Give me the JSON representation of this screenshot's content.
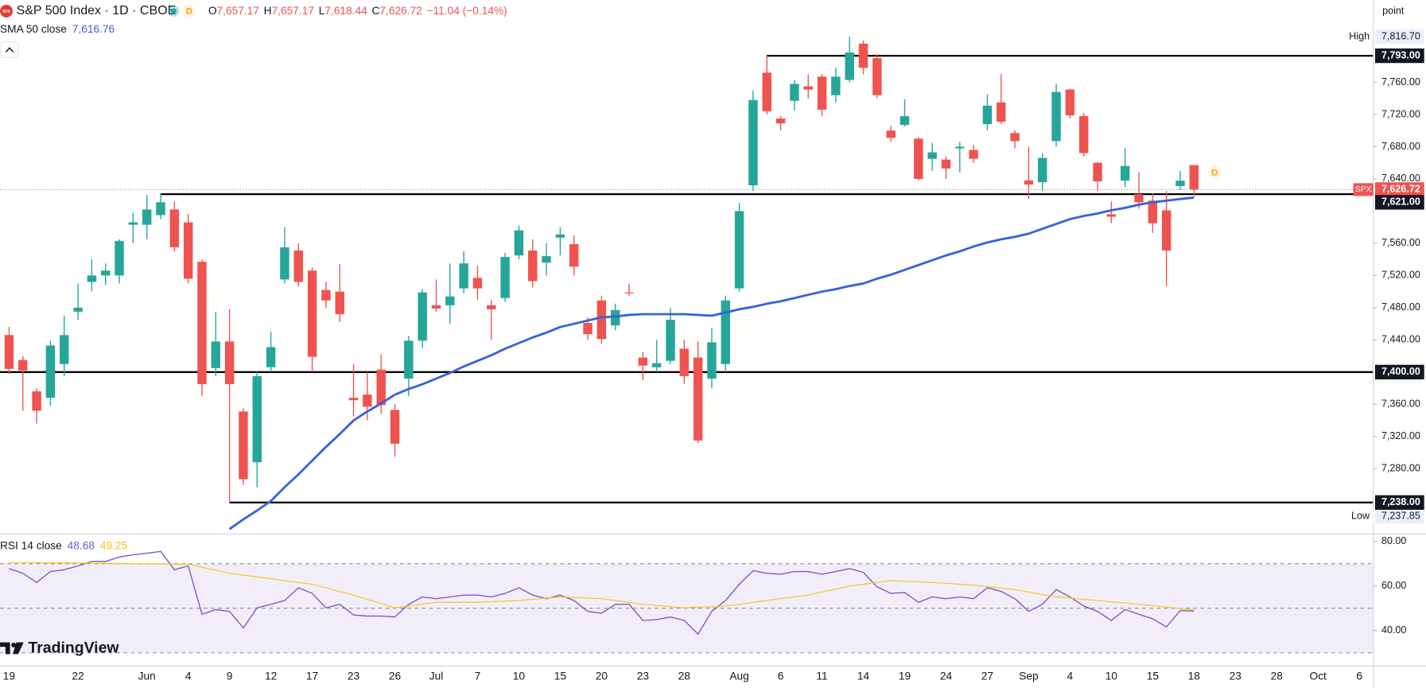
{
  "header": {
    "symbol_icon": "500",
    "title": "S&P 500 Index · 1D · CBOE",
    "badge": "D",
    "o_label": "O",
    "o": "7,657.17",
    "h_label": "H",
    "h": "7,657.17",
    "l_label": "L",
    "l": "7,618.44",
    "c_label": "C",
    "c": "7,626.72",
    "change": "−11.04 (−0.14%)"
  },
  "brand": "TradingView",
  "axis_unit": "point",
  "chart_data": [
    {
      "type": "candlestick",
      "up_color": "#26a69a",
      "down_color": "#ef5350",
      "categories": [
        "19",
        null,
        null,
        null,
        null,
        "22",
        null,
        null,
        null,
        null,
        "Jun",
        null,
        null,
        "4",
        null,
        null,
        "9",
        null,
        null,
        "12",
        null,
        null,
        "17",
        null,
        null,
        "23",
        null,
        null,
        "26",
        null,
        null,
        "Jul",
        null,
        null,
        "7",
        null,
        null,
        "10",
        null,
        null,
        "15",
        null,
        null,
        "20",
        null,
        null,
        "23",
        null,
        null,
        "28",
        null,
        null,
        null,
        "Aug",
        null,
        null,
        "6",
        null,
        null,
        "11",
        null,
        null,
        "14",
        null,
        null,
        "19",
        null,
        null,
        "24",
        null,
        null,
        "27",
        null,
        null,
        "Sep",
        null,
        null,
        "4",
        null,
        null,
        "10",
        null,
        null,
        "15",
        null,
        null,
        "18",
        null,
        null,
        "23",
        null,
        null,
        "28",
        null,
        null,
        "Oct",
        null,
        null,
        "6",
        null
      ],
      "open": [
        7446,
        7415,
        7376,
        7368,
        7410,
        7475,
        7512,
        7520,
        7520,
        7583,
        7583,
        7595,
        7602,
        7586,
        7537,
        7405,
        7438,
        7351,
        7288,
        7406,
        7515,
        7551,
        7526,
        7502,
        7500,
        7368,
        7372,
        7403,
        7353,
        7392,
        7439,
        7483,
        7483,
        7504,
        7517,
        7483,
        7492,
        7545,
        7551,
        7536,
        7567,
        7559,
        7461,
        7489,
        7458,
        7499,
        7418,
        7406,
        7414,
        7429,
        7418,
        7392,
        7410,
        7504,
        7632,
        7772,
        7715,
        7737,
        7755,
        7767,
        7744,
        7763,
        7808,
        7790,
        7700,
        7707,
        7690,
        7665,
        7664,
        7678,
        7676,
        7708,
        7735,
        7697,
        7638,
        7636,
        7687,
        7751,
        7718,
        7660,
        7596,
        7638,
        7621,
        7613,
        7601,
        7631,
        7657.17,
        null,
        null,
        null,
        null,
        null,
        null,
        null,
        null,
        null,
        null,
        null,
        null,
        null
      ],
      "high": [
        7456,
        7420,
        7380,
        7439,
        7470,
        7510,
        7540,
        7535,
        7565,
        7598,
        7620,
        7622,
        7612,
        7596,
        7540,
        7475,
        7478,
        7355,
        7400,
        7450,
        7580,
        7560,
        7530,
        7512,
        7534,
        7410,
        7400,
        7422,
        7360,
        7445,
        7503,
        7515,
        7535,
        7550,
        7532,
        7490,
        7548,
        7582,
        7565,
        7560,
        7580,
        7570,
        7468,
        7495,
        7485,
        7510,
        7425,
        7440,
        7480,
        7440,
        7438,
        7455,
        7495,
        7610,
        7750,
        7793,
        7718,
        7763,
        7770,
        7770,
        7778,
        7816.7,
        7812,
        7795,
        7706,
        7739,
        7692,
        7685,
        7668,
        7686,
        7682,
        7745,
        7770,
        7700,
        7680,
        7672,
        7758,
        7752,
        7722,
        7661,
        7612,
        7678,
        7648,
        7622,
        7625,
        7650,
        7657.17,
        null,
        null,
        null,
        null,
        null,
        null,
        null,
        null,
        null,
        null,
        null,
        null,
        null
      ],
      "low": [
        7398,
        7352,
        7336,
        7358,
        7395,
        7465,
        7500,
        7508,
        7510,
        7560,
        7565,
        7590,
        7550,
        7510,
        7370,
        7395,
        7237.85,
        7260,
        7257,
        7400,
        7510,
        7506,
        7400,
        7480,
        7462,
        7345,
        7340,
        7348,
        7295,
        7370,
        7430,
        7475,
        7460,
        7498,
        7490,
        7440,
        7487,
        7540,
        7505,
        7520,
        7545,
        7520,
        7440,
        7435,
        7452,
        7495,
        7390,
        7400,
        7410,
        7385,
        7312,
        7380,
        7400,
        7500,
        7625,
        7720,
        7700,
        7725,
        7740,
        7718,
        7735,
        7760,
        7770,
        7740,
        7686,
        7705,
        7638,
        7650,
        7640,
        7648,
        7660,
        7700,
        7708,
        7678,
        7615,
        7625,
        7680,
        7715,
        7668,
        7625,
        7585,
        7630,
        7603,
        7573,
        7507,
        7626,
        7618.44,
        null,
        null,
        null,
        null,
        null,
        null,
        null,
        null,
        null,
        null,
        null,
        null,
        null
      ],
      "close": [
        7404,
        7402,
        7352,
        7433,
        7446,
        7480,
        7520,
        7526,
        7563,
        7586,
        7602,
        7611,
        7555,
        7516,
        7385,
        7438,
        7385,
        7267,
        7395,
        7431,
        7555,
        7512,
        7419,
        7489,
        7472,
        7365,
        7357,
        7359,
        7311,
        7439,
        7499,
        7479,
        7494,
        7535,
        7504,
        7478,
        7543,
        7576,
        7513,
        7544,
        7571,
        7531,
        7447,
        7441,
        7477,
        7498,
        7408,
        7411,
        7465,
        7395,
        7315,
        7437,
        7489,
        7600,
        7738,
        7724,
        7709,
        7758,
        7751,
        7726,
        7767,
        7797,
        7778,
        7744,
        7691,
        7718,
        7640,
        7673,
        7653,
        7680,
        7665,
        7731,
        7711,
        7687,
        7633,
        7666,
        7748,
        7719,
        7672,
        7637,
        7593,
        7656,
        7611,
        7585,
        7551,
        7637.76,
        7626.72,
        null,
        null,
        null,
        null,
        null,
        null,
        null,
        null,
        null,
        null,
        null,
        null,
        null
      ],
      "indicator": {
        "name": "SMA 50 close",
        "last": "7,616.76",
        "color": "#3a62d9",
        "values": [
          null,
          null,
          null,
          null,
          null,
          null,
          null,
          null,
          null,
          null,
          null,
          null,
          null,
          null,
          null,
          null,
          7205,
          7217,
          7228,
          7240,
          7257,
          7273,
          7290,
          7307,
          7323,
          7340,
          7351,
          7361,
          7372,
          7379,
          7385,
          7392,
          7399,
          7407,
          7414,
          7421,
          7429,
          7436,
          7443,
          7449,
          7456,
          7460,
          7464,
          7468,
          7469,
          7471,
          7472,
          7472,
          7472,
          7472,
          7471,
          7470,
          7474,
          7478,
          7481,
          7485,
          7488,
          7492,
          7496,
          7500,
          7503,
          7507,
          7510,
          7516,
          7521,
          7527,
          7533,
          7539,
          7545,
          7550,
          7556,
          7561,
          7565,
          7568,
          7572,
          7578,
          7584,
          7590,
          7594,
          7597,
          7601,
          7604,
          7608,
          7611,
          7613,
          7615,
          7616.76,
          null,
          null,
          null,
          null,
          null,
          null,
          null,
          null,
          null,
          null,
          null,
          null,
          null
        ]
      },
      "levels": [
        {
          "value": 7793,
          "label": "7,793.00"
        },
        {
          "value": 7621,
          "label": "7,621.00"
        },
        {
          "value": 7400,
          "label": "7,400.00"
        },
        {
          "value": 7238,
          "label": "7,238.00"
        }
      ],
      "high_marker": {
        "label": "High",
        "value": 7816.7,
        "value_label": "7,816.70"
      },
      "low_marker": {
        "label": "Low",
        "value": 7237.85,
        "value_label": "7,237.85"
      },
      "last_price": {
        "symbol": "SPX",
        "value": 7626.72,
        "value_label": "7,626.72",
        "color": "#ef5350"
      },
      "event_label": "D",
      "ylim": [
        7201,
        7862
      ],
      "yticks": [
        {
          "value": 7760,
          "label": "7,760.00"
        },
        {
          "value": 7720,
          "label": "7,720.00"
        },
        {
          "value": 7680,
          "label": "7,680.00"
        },
        {
          "value": 7640,
          "label": "7,640.00"
        },
        {
          "value": 7560,
          "label": "7,560.00"
        },
        {
          "value": 7520,
          "label": "7,520.00"
        },
        {
          "value": 7480,
          "label": "7,480.00"
        },
        {
          "value": 7440,
          "label": "7,440.00"
        },
        {
          "value": 7360,
          "label": "7,360.00"
        },
        {
          "value": 7320,
          "label": "7,320.00"
        },
        {
          "value": 7280,
          "label": "7,280.00"
        }
      ]
    },
    {
      "type": "line",
      "title": "RSI 14 close",
      "ylim": [
        24.1,
        82.9
      ],
      "yticks": [
        {
          "value": 80,
          "label": "80.00"
        },
        {
          "value": 60,
          "label": "60.00"
        },
        {
          "value": 40,
          "label": "40.00"
        }
      ],
      "levels": [
        70,
        50,
        30
      ],
      "series": [
        {
          "color": "#7e57c2",
          "value_label": "48.68",
          "values": [
            67.8,
            65.7,
            61.6,
            66.5,
            67.3,
            69,
            71,
            71,
            73,
            74,
            74.7,
            75.5,
            67.3,
            69,
            47.3,
            49.4,
            48.6,
            41.2,
            50.2,
            51.8,
            53.5,
            59.2,
            56.7,
            50.2,
            51.8,
            47,
            46.5,
            46.5,
            46.1,
            51.8,
            55.1,
            54.3,
            55.1,
            55.9,
            55.9,
            55.1,
            56.7,
            59.2,
            55.9,
            54.3,
            55.9,
            53.5,
            48.6,
            47.8,
            51.8,
            51.8,
            44.5,
            44.9,
            46.1,
            44.5,
            38.4,
            48.6,
            53.5,
            60.8,
            66.9,
            65.7,
            65.3,
            66.5,
            66.5,
            65.3,
            66.5,
            67.8,
            66.1,
            59.6,
            56.7,
            57.1,
            52.7,
            55.1,
            54.3,
            55.1,
            54.3,
            59.2,
            57.6,
            54.3,
            48.6,
            51.8,
            58.4,
            55.1,
            51,
            48.6,
            44.5,
            49.4,
            47.3,
            45.3,
            41.6,
            49,
            48.68,
            null,
            null,
            null,
            null,
            null,
            null,
            null,
            null,
            null,
            null,
            null,
            null,
            null
          ]
        },
        {
          "color": "#f5c518",
          "value_label": "49.25",
          "values": [
            70.6,
            70.6,
            70.5,
            70.4,
            70.4,
            70.3,
            70.2,
            70.2,
            70.1,
            70.0,
            70.0,
            69.9,
            69.8,
            69.8,
            68.4,
            67.1,
            65.7,
            64.9,
            64.1,
            63.3,
            62.4,
            61.6,
            60.8,
            59.2,
            57.5,
            55.9,
            54.0,
            52.1,
            50.2,
            51.0,
            51.9,
            52.7,
            52.7,
            52.7,
            52.7,
            53.0,
            53.2,
            53.5,
            54.0,
            54.6,
            55.1,
            54.8,
            54.6,
            54.3,
            53.5,
            52.6,
            51.8,
            51.3,
            50.7,
            50.2,
            50.5,
            50.7,
            51.0,
            51.8,
            52.7,
            53.5,
            54.3,
            55.1,
            55.9,
            57.3,
            58.6,
            60.0,
            60.8,
            61.6,
            62.4,
            62.1,
            61.9,
            61.6,
            61.2,
            60.8,
            60.4,
            59.7,
            59.1,
            58.4,
            57.3,
            56.2,
            55.1,
            54.6,
            54.0,
            53.5,
            52.9,
            52.4,
            51.8,
            51.2,
            50.5,
            49.9,
            49.25,
            null,
            null,
            null,
            null,
            null,
            null,
            null,
            null,
            null,
            null,
            null,
            null,
            null
          ]
        }
      ]
    }
  ]
}
